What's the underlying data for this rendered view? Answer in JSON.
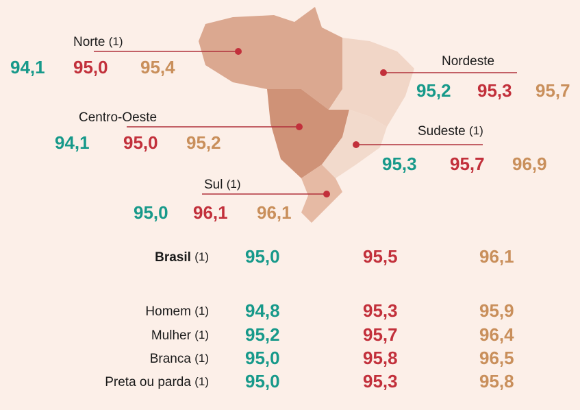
{
  "regions": [
    {
      "name": "Norte",
      "note": "(1)",
      "values": [
        "94,1",
        "95,0",
        "95,4"
      ]
    },
    {
      "name": "Nordeste",
      "values": [
        "95,2",
        "95,3",
        "95,7"
      ]
    },
    {
      "name": "Centro-Oeste",
      "values": [
        "94,1",
        "95,0",
        "95,2"
      ]
    },
    {
      "name": "Sudeste",
      "note": "(1)",
      "values": [
        "95,3",
        "95,7",
        "96,9"
      ]
    },
    {
      "name": "Sul",
      "note": "(1)",
      "values": [
        "95,0",
        "96,1",
        "96,1"
      ]
    }
  ],
  "summary": [
    {
      "label": "Brasil",
      "note": "(1)",
      "values": [
        "95,0",
        "95,5",
        "96,1"
      ]
    },
    {
      "label": "Homem",
      "note": "(1)",
      "values": [
        "94,8",
        "95,3",
        "95,9"
      ]
    },
    {
      "label": "Mulher",
      "note": "(1)",
      "values": [
        "95,2",
        "95,7",
        "96,4"
      ]
    },
    {
      "label": "Branca",
      "note": "(1)",
      "values": [
        "95,0",
        "95,8",
        "96,5"
      ]
    },
    {
      "label": "Preta ou parda",
      "note": "(1)",
      "values": [
        "95,0",
        "95,3",
        "95,8"
      ]
    }
  ]
}
